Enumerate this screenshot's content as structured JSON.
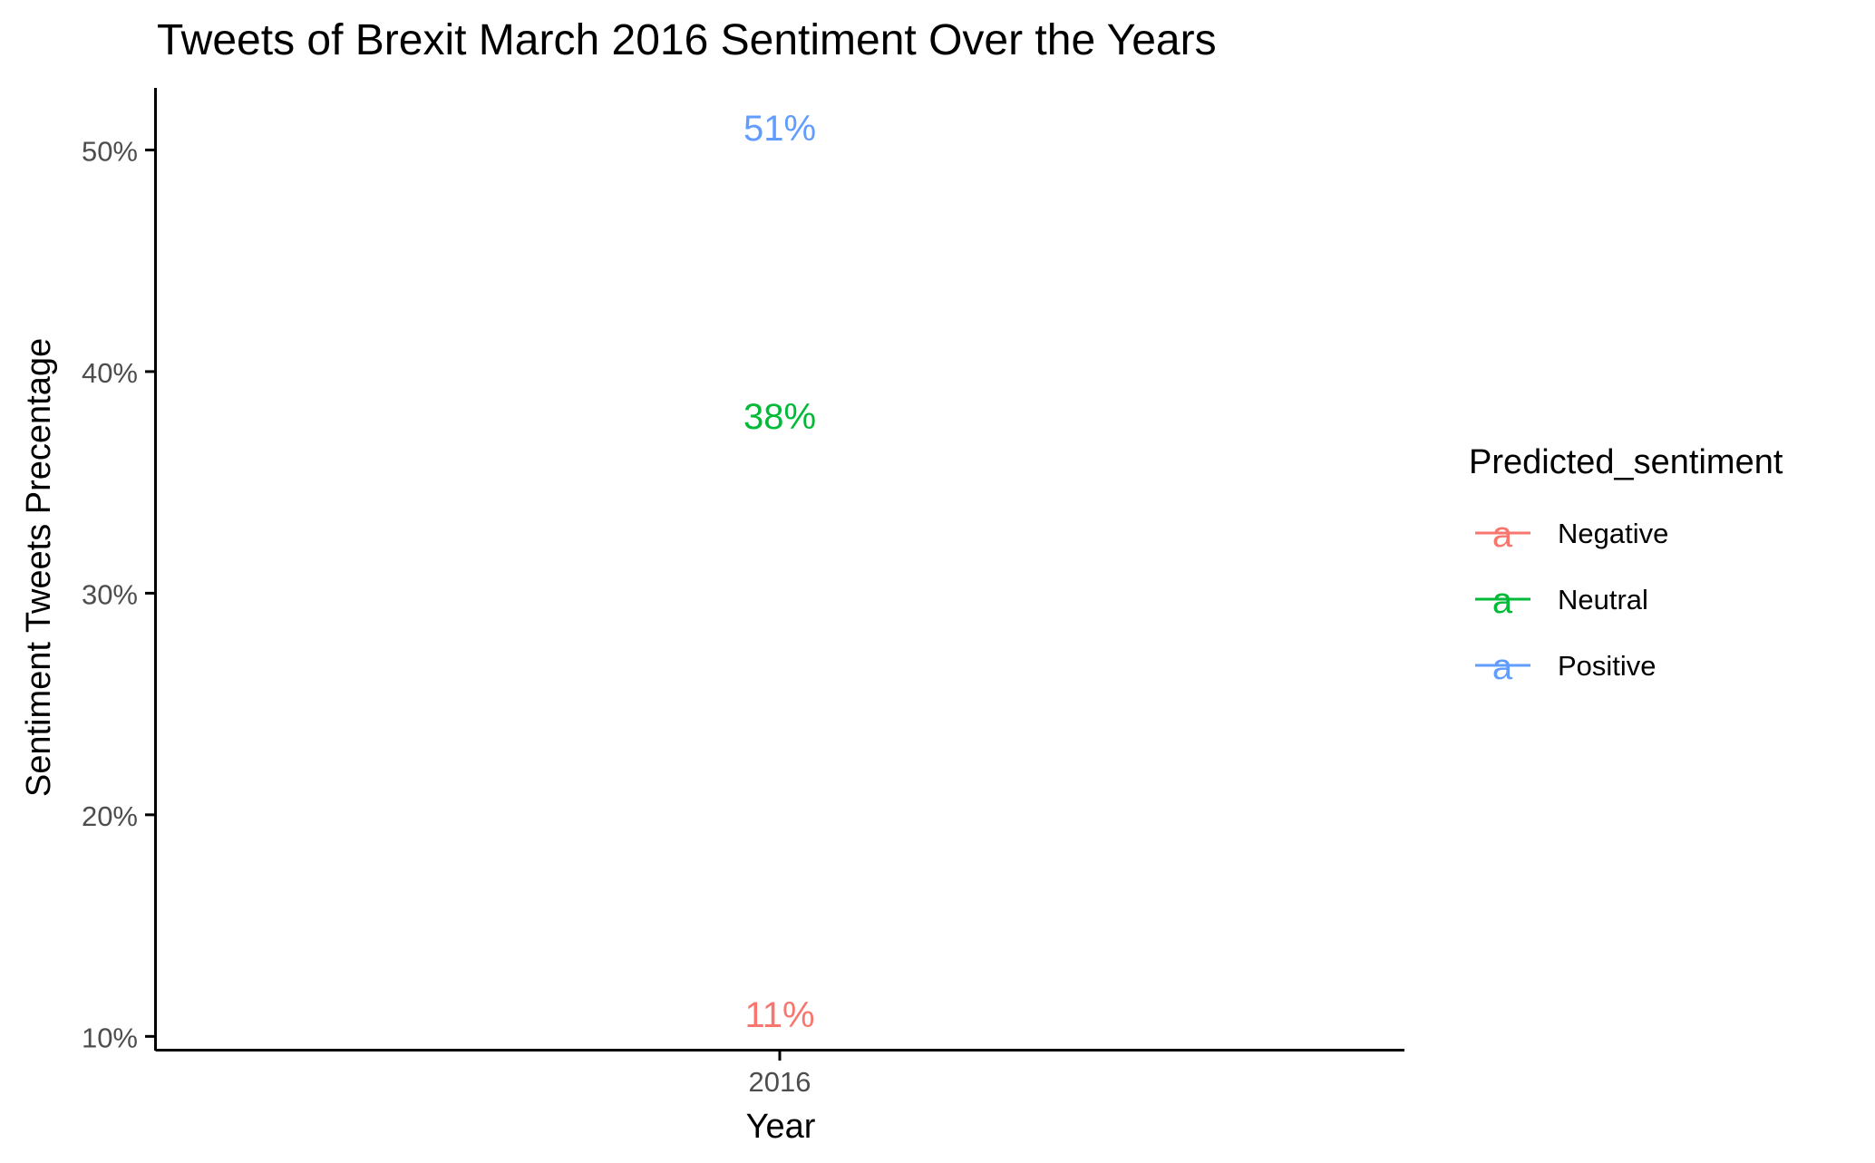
{
  "chart_data": {
    "type": "scatter",
    "title": "Tweets of Brexit March 2016 Sentiment Over the Years",
    "xlabel": "Year",
    "ylabel": "Sentiment Tweets Precentage",
    "categories": [
      "2016"
    ],
    "ylim": [
      0.094,
      0.528
    ],
    "y_ticks": [
      {
        "value": 0.1,
        "label": "10%"
      },
      {
        "value": 0.2,
        "label": "20%"
      },
      {
        "value": 0.3,
        "label": "30%"
      },
      {
        "value": 0.4,
        "label": "40%"
      },
      {
        "value": 0.5,
        "label": "50%"
      }
    ],
    "grid": false,
    "legend": {
      "title": "Predicted_sentiment",
      "placement": "right",
      "entries": [
        {
          "name": "Negative",
          "color": "#F8766D",
          "glyph": "a"
        },
        {
          "name": "Neutral",
          "color": "#00BA38",
          "glyph": "a"
        },
        {
          "name": "Positive",
          "color": "#619CFF",
          "glyph": "a"
        }
      ]
    },
    "series": [
      {
        "name": "Negative",
        "color": "#F8766D",
        "x": "2016",
        "y": 0.11,
        "label": "11%"
      },
      {
        "name": "Neutral",
        "color": "#00BA38",
        "x": "2016",
        "y": 0.38,
        "label": "38%"
      },
      {
        "name": "Positive",
        "color": "#619CFF",
        "x": "2016",
        "y": 0.51,
        "label": "51%"
      }
    ]
  }
}
